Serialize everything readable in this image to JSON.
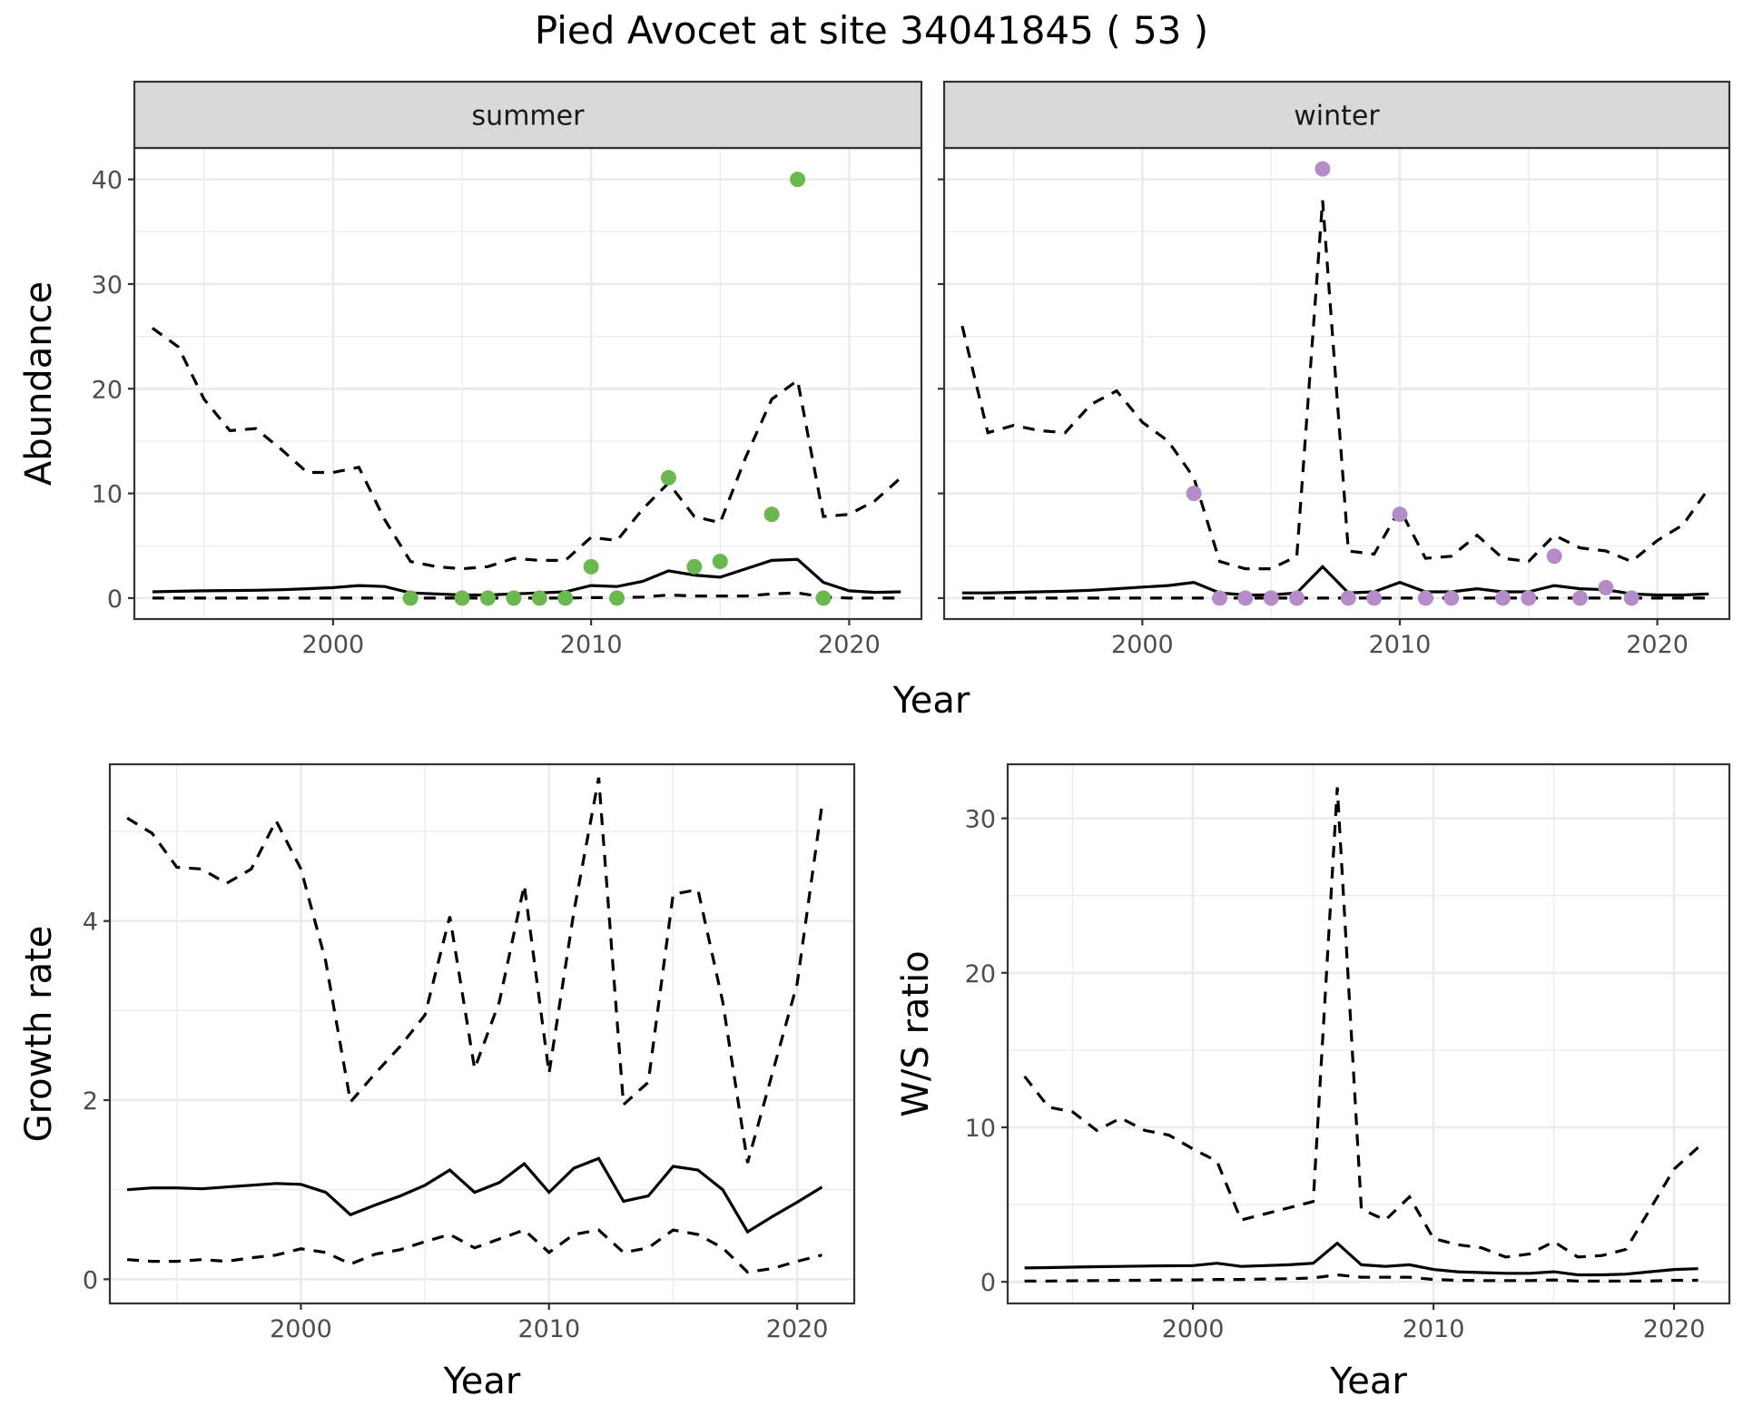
{
  "title": "Pied Avocet at site 34041845 ( 53 )",
  "chart_data": [
    {
      "id": "abundance-summer",
      "type": "line",
      "strip": "summer",
      "ylabel": "Abundance",
      "xlabel": "",
      "xlim": [
        1992.3,
        2022.8
      ],
      "ylim": [
        -2,
        43
      ],
      "xticks": [
        2000,
        2010,
        2020
      ],
      "yticks": [
        0,
        10,
        20,
        30,
        40
      ],
      "xminor": [
        1995,
        2005,
        2015
      ],
      "yminor": [
        5,
        15,
        25,
        35
      ],
      "series": [
        {
          "role": "upper",
          "x": [
            1993,
            1994,
            1995,
            1996,
            1997,
            1998,
            1999,
            2000,
            2001,
            2002,
            2003,
            2004,
            2005,
            2006,
            2007,
            2008,
            2009,
            2010,
            2011,
            2012,
            2013,
            2014,
            2015,
            2016,
            2017,
            2018,
            2019,
            2020,
            2021,
            2022
          ],
          "y": [
            25.8,
            24,
            19,
            16,
            16.2,
            14.2,
            12,
            12,
            12.5,
            7.5,
            3.5,
            3,
            2.8,
            3,
            3.8,
            3.6,
            3.6,
            5.8,
            5.5,
            8.5,
            11,
            7.8,
            7.2,
            13.5,
            19,
            20.8,
            7.8,
            8,
            9.3,
            11.5
          ]
        },
        {
          "role": "mean",
          "x": [
            1993,
            1994,
            1995,
            1996,
            1997,
            1998,
            1999,
            2000,
            2001,
            2002,
            2003,
            2004,
            2005,
            2006,
            2007,
            2008,
            2009,
            2010,
            2011,
            2012,
            2013,
            2014,
            2015,
            2016,
            2017,
            2018,
            2019,
            2020,
            2021,
            2022
          ],
          "y": [
            0.6,
            0.65,
            0.7,
            0.72,
            0.75,
            0.8,
            0.9,
            1,
            1.2,
            1.1,
            0.5,
            0.4,
            0.3,
            0.3,
            0.4,
            0.5,
            0.6,
            1.2,
            1.1,
            1.6,
            2.6,
            2.2,
            2,
            2.8,
            3.6,
            3.7,
            1.5,
            0.7,
            0.55,
            0.6
          ]
        },
        {
          "role": "lower",
          "x": [
            1993,
            1994,
            1995,
            1996,
            1997,
            1998,
            1999,
            2000,
            2001,
            2002,
            2003,
            2004,
            2005,
            2006,
            2007,
            2008,
            2009,
            2010,
            2011,
            2012,
            2013,
            2014,
            2015,
            2016,
            2017,
            2018,
            2019,
            2020,
            2021,
            2022
          ],
          "y": [
            0,
            0,
            0,
            0,
            0,
            0,
            0,
            0,
            0,
            0,
            0,
            0,
            0,
            0,
            0,
            0,
            0,
            0.05,
            0.05,
            0.1,
            0.3,
            0.2,
            0.2,
            0.2,
            0.4,
            0.5,
            0.1,
            0,
            0,
            0
          ]
        }
      ],
      "points": {
        "color": "#6ab84f",
        "x": [
          2003,
          2005,
          2006,
          2007,
          2008,
          2009,
          2010,
          2011,
          2013,
          2014,
          2015,
          2017,
          2018,
          2019
        ],
        "y": [
          0,
          0,
          0,
          0,
          0,
          0,
          3,
          0,
          11.5,
          3,
          3.5,
          8,
          40,
          0
        ]
      }
    },
    {
      "id": "abundance-winter",
      "type": "line",
      "strip": "winter",
      "ylabel": "",
      "xlabel": "",
      "xlim": [
        1992.3,
        2022.8
      ],
      "ylim": [
        -2,
        43
      ],
      "xticks": [
        2000,
        2010,
        2020
      ],
      "yticks": [
        0,
        10,
        20,
        30,
        40
      ],
      "xminor": [
        1995,
        2005,
        2015
      ],
      "yminor": [
        5,
        15,
        25,
        35
      ],
      "series": [
        {
          "role": "upper",
          "x": [
            1993,
            1994,
            1995,
            1996,
            1997,
            1998,
            1999,
            2000,
            2001,
            2002,
            2003,
            2004,
            2005,
            2006,
            2007,
            2008,
            2009,
            2010,
            2011,
            2012,
            2013,
            2014,
            2015,
            2016,
            2017,
            2018,
            2019,
            2020,
            2021,
            2022
          ],
          "y": [
            26,
            15.8,
            16.5,
            16,
            15.8,
            18.5,
            19.8,
            16.8,
            15,
            11.5,
            3.5,
            2.8,
            2.8,
            4,
            38,
            4.5,
            4.2,
            8.5,
            3.8,
            4,
            6,
            3.8,
            3.5,
            6,
            4.8,
            4.5,
            3.5,
            5.5,
            7,
            10.5
          ]
        },
        {
          "role": "mean",
          "x": [
            1993,
            1994,
            1995,
            1996,
            1997,
            1998,
            1999,
            2000,
            2001,
            2002,
            2003,
            2004,
            2005,
            2006,
            2007,
            2008,
            2009,
            2010,
            2011,
            2012,
            2013,
            2014,
            2015,
            2016,
            2017,
            2018,
            2019,
            2020,
            2021,
            2022
          ],
          "y": [
            0.5,
            0.5,
            0.55,
            0.6,
            0.65,
            0.75,
            0.9,
            1.05,
            1.2,
            1.5,
            0.5,
            0.3,
            0.3,
            0.5,
            3,
            0.5,
            0.6,
            1.5,
            0.6,
            0.6,
            0.9,
            0.6,
            0.6,
            1.2,
            0.9,
            0.8,
            0.4,
            0.3,
            0.3,
            0.4
          ]
        },
        {
          "role": "lower",
          "x": [
            1993,
            1994,
            1995,
            1996,
            1997,
            1998,
            1999,
            2000,
            2001,
            2002,
            2003,
            2004,
            2005,
            2006,
            2007,
            2008,
            2009,
            2010,
            2011,
            2012,
            2013,
            2014,
            2015,
            2016,
            2017,
            2018,
            2019,
            2020,
            2021,
            2022
          ],
          "y": [
            0,
            0,
            0,
            0,
            0,
            0,
            0,
            0,
            0,
            0,
            0,
            0,
            0,
            0,
            0,
            0,
            0,
            0,
            0,
            0,
            0,
            0,
            0,
            0,
            0,
            0,
            0,
            0,
            0,
            0
          ]
        }
      ],
      "points": {
        "color": "#b38cc8",
        "x": [
          2002,
          2003,
          2004,
          2005,
          2006,
          2007,
          2008,
          2009,
          2010,
          2011,
          2012,
          2014,
          2015,
          2016,
          2017,
          2018,
          2019
        ],
        "y": [
          10,
          0,
          0,
          0,
          0,
          41,
          0,
          0,
          8,
          0,
          0,
          0,
          0,
          4,
          0,
          1,
          0
        ]
      }
    },
    {
      "id": "growth-rate",
      "type": "line",
      "ylabel": "Growth rate",
      "xlabel": "Year",
      "xlim": [
        1992.3,
        2022.3
      ],
      "ylim": [
        -0.27,
        5.75
      ],
      "xticks": [
        2000,
        2010,
        2020
      ],
      "yticks": [
        0,
        2,
        4
      ],
      "xminor": [
        1995,
        2005,
        2015
      ],
      "yminor": [
        1,
        3,
        5
      ],
      "series": [
        {
          "role": "upper",
          "x": [
            1993,
            1994,
            1995,
            1996,
            1997,
            1998,
            1999,
            2000,
            2001,
            2002,
            2003,
            2004,
            2005,
            2006,
            2007,
            2008,
            2009,
            2010,
            2011,
            2012,
            2013,
            2014,
            2015,
            2016,
            2017,
            2018,
            2019,
            2020,
            2021
          ],
          "y": [
            5.15,
            4.98,
            4.6,
            4.58,
            4.42,
            4.58,
            5.12,
            4.58,
            3.55,
            1.98,
            2.3,
            2.6,
            2.95,
            4.05,
            2.35,
            3.1,
            4.4,
            2.3,
            4.1,
            5.6,
            1.95,
            2.2,
            4.3,
            4.35,
            3.1,
            1.3,
            2.3,
            3.3,
            5.3
          ]
        },
        {
          "role": "mean",
          "x": [
            1993,
            1994,
            1995,
            1996,
            1997,
            1998,
            1999,
            2000,
            2001,
            2002,
            2003,
            2004,
            2005,
            2006,
            2007,
            2008,
            2009,
            2010,
            2011,
            2012,
            2013,
            2014,
            2015,
            2016,
            2017,
            2018,
            2019,
            2020,
            2021
          ],
          "y": [
            1.0,
            1.02,
            1.02,
            1.01,
            1.03,
            1.05,
            1.07,
            1.06,
            0.97,
            0.72,
            0.83,
            0.93,
            1.05,
            1.22,
            0.97,
            1.08,
            1.29,
            0.97,
            1.24,
            1.35,
            0.87,
            0.93,
            1.26,
            1.22,
            1.0,
            0.53,
            0.7,
            0.86,
            1.03
          ]
        },
        {
          "role": "lower",
          "x": [
            1993,
            1994,
            1995,
            1996,
            1997,
            1998,
            1999,
            2000,
            2001,
            2002,
            2003,
            2004,
            2005,
            2006,
            2007,
            2008,
            2009,
            2010,
            2011,
            2012,
            2013,
            2014,
            2015,
            2016,
            2017,
            2018,
            2019,
            2020,
            2021
          ],
          "y": [
            0.22,
            0.2,
            0.2,
            0.22,
            0.2,
            0.24,
            0.27,
            0.34,
            0.3,
            0.17,
            0.28,
            0.33,
            0.42,
            0.5,
            0.35,
            0.45,
            0.55,
            0.3,
            0.5,
            0.55,
            0.3,
            0.35,
            0.55,
            0.5,
            0.35,
            0.08,
            0.12,
            0.2,
            0.27
          ]
        }
      ]
    },
    {
      "id": "ws-ratio",
      "type": "line",
      "ylabel": "W/S ratio",
      "xlabel": "Year",
      "xlim": [
        1992.3,
        2022.3
      ],
      "ylim": [
        -1.4,
        33.5
      ],
      "xticks": [
        2000,
        2010,
        2020
      ],
      "yticks": [
        0,
        10,
        20,
        30
      ],
      "xminor": [
        1995,
        2005,
        2015
      ],
      "yminor": [
        5,
        15,
        25
      ],
      "series": [
        {
          "role": "upper",
          "x": [
            1993,
            1994,
            1995,
            1996,
            1997,
            1998,
            1999,
            2000,
            2001,
            2002,
            2003,
            2004,
            2005,
            2006,
            2007,
            2008,
            2009,
            2010,
            2011,
            2012,
            2013,
            2014,
            2015,
            2016,
            2017,
            2018,
            2019,
            2020,
            2021
          ],
          "y": [
            13.3,
            11.3,
            11,
            9.8,
            10.6,
            9.8,
            9.5,
            8.6,
            7.8,
            4,
            4.4,
            4.8,
            5.2,
            32,
            4.7,
            4,
            5.5,
            2.8,
            2.4,
            2.2,
            1.6,
            1.8,
            2.6,
            1.6,
            1.7,
            2.1,
            4.7,
            7.3,
            8.7
          ]
        },
        {
          "role": "mean",
          "x": [
            1993,
            1994,
            1995,
            1996,
            1997,
            1998,
            1999,
            2000,
            2001,
            2002,
            2003,
            2004,
            2005,
            2006,
            2007,
            2008,
            2009,
            2010,
            2011,
            2012,
            2013,
            2014,
            2015,
            2016,
            2017,
            2018,
            2019,
            2020,
            2021
          ],
          "y": [
            0.9,
            0.92,
            0.95,
            0.98,
            1.0,
            1.02,
            1.04,
            1.05,
            1.2,
            1.0,
            1.05,
            1.1,
            1.2,
            2.5,
            1.1,
            1.0,
            1.1,
            0.8,
            0.65,
            0.6,
            0.55,
            0.55,
            0.65,
            0.45,
            0.45,
            0.5,
            0.65,
            0.8,
            0.85
          ]
        },
        {
          "role": "lower",
          "x": [
            1993,
            1994,
            1995,
            1996,
            1997,
            1998,
            1999,
            2000,
            2001,
            2002,
            2003,
            2004,
            2005,
            2006,
            2007,
            2008,
            2009,
            2010,
            2011,
            2012,
            2013,
            2014,
            2015,
            2016,
            2017,
            2018,
            2019,
            2020,
            2021
          ],
          "y": [
            0.05,
            0.05,
            0.07,
            0.08,
            0.1,
            0.1,
            0.12,
            0.12,
            0.15,
            0.15,
            0.18,
            0.2,
            0.25,
            0.45,
            0.3,
            0.3,
            0.3,
            0.15,
            0.1,
            0.08,
            0.08,
            0.08,
            0.12,
            0.05,
            0.05,
            0.05,
            0.05,
            0.1,
            0.1
          ]
        }
      ]
    }
  ]
}
